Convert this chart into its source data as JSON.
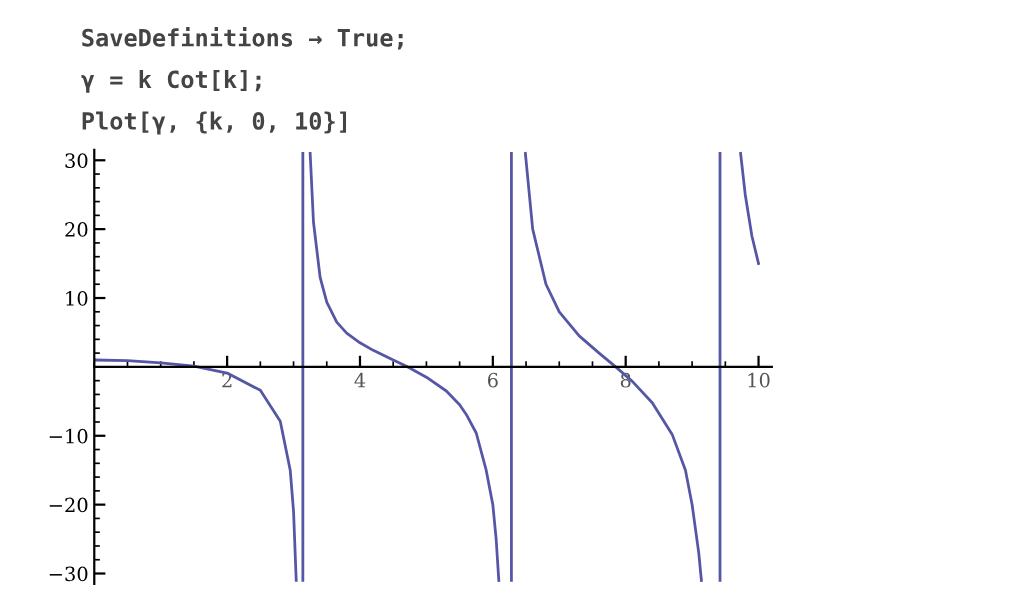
{
  "chart_data": {
    "type": "line",
    "annotations": [
      "SaveDefinitions → True;",
      "γ = k Cot[k];",
      "Plot[γ, {k, 0, 10}]"
    ],
    "series": [
      {
        "color": "#5656a6",
        "x": [
          0,
          0.5,
          1.0,
          1.5,
          2.0,
          2.5,
          2.8,
          2.95,
          3.0,
          3.04
        ],
        "values": [
          1,
          0.9,
          0.6,
          0.1,
          -0.9,
          -3.4,
          -7.9,
          -15,
          -21,
          -31
        ]
      },
      {
        "color": "#5656a6",
        "x": [
          3.14,
          3.14
        ],
        "values": [
          -31,
          31
        ]
      },
      {
        "color": "#5656a6",
        "x": [
          3.25,
          3.3,
          3.4,
          3.5,
          3.65,
          3.8,
          4.0,
          4.2,
          4.5,
          4.7,
          5.0,
          5.3,
          5.5,
          5.6,
          5.75,
          5.9,
          6.0,
          6.05,
          6.09
        ],
        "values": [
          31,
          21,
          13,
          9.4,
          6.5,
          4.9,
          3.5,
          2.4,
          1.0,
          0.1,
          -1.5,
          -3.5,
          -5.5,
          -6.9,
          -9.6,
          -15,
          -20,
          -25,
          -31
        ]
      },
      {
        "color": "#5656a6",
        "x": [
          6.28,
          6.28
        ],
        "values": [
          -31,
          31
        ]
      },
      {
        "color": "#5656a6",
        "x": [
          6.49,
          6.6,
          6.8,
          7.0,
          7.3,
          7.6,
          7.85,
          8.1,
          8.4,
          8.7,
          8.9,
          9.0,
          9.1,
          9.14
        ],
        "values": [
          31,
          20,
          12,
          8.0,
          4.5,
          2.0,
          0.0,
          -2.1,
          -5.2,
          -9.8,
          -15,
          -20,
          -27,
          -31
        ]
      },
      {
        "color": "#5656a6",
        "x": [
          9.42,
          9.42
        ],
        "values": [
          -31,
          31
        ]
      },
      {
        "color": "#5656a6",
        "x": [
          9.73,
          9.8,
          9.9,
          10.0
        ],
        "values": [
          31,
          25,
          19,
          15
        ]
      }
    ],
    "xlim": [
      0,
      10.2
    ],
    "ylim": [
      -31.5,
      31.5
    ],
    "xticks": [
      2,
      4,
      6,
      8,
      10
    ],
    "yticks": [
      -30,
      -20,
      -10,
      10,
      20,
      30
    ],
    "grid": false,
    "marker": "none",
    "line_style": "solid"
  }
}
